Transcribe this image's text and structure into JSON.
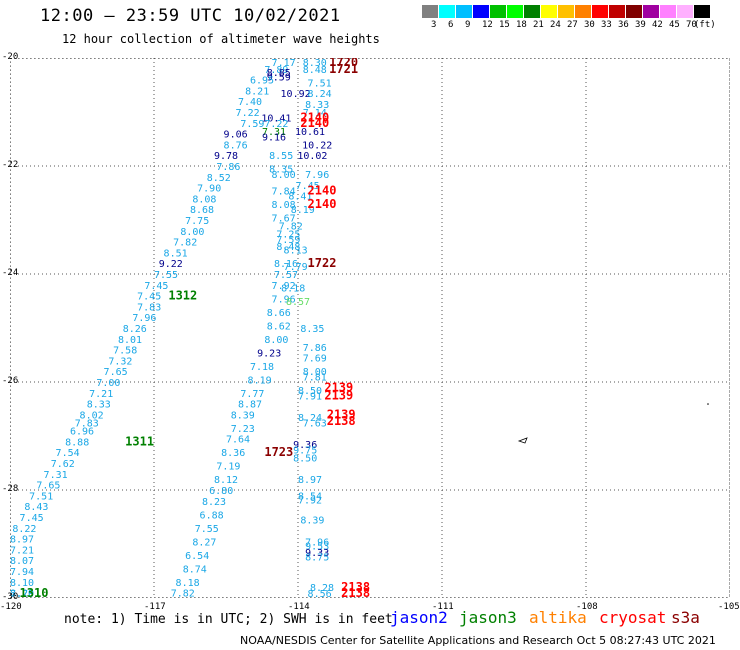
{
  "header": {
    "title": "12:00 — 23:59 UTC 10/02/2021",
    "subtitle": "12 hour collection of altimeter wave heights"
  },
  "legend": {
    "colors": [
      "#808080",
      "#00ffff",
      "#00bfff",
      "#0000ff",
      "#00c000",
      "#00ff00",
      "#008000",
      "#ffff00",
      "#ffc000",
      "#ff8000",
      "#ff0000",
      "#c00000",
      "#800000",
      "#a000a0",
      "#ff80ff",
      "#ffb0ff",
      "#000000"
    ],
    "labels": [
      "3",
      "6",
      "9",
      "12",
      "15",
      "18",
      "21",
      "24",
      "27",
      "30",
      "33",
      "36",
      "39",
      "42",
      "45",
      "70",
      "(ft)"
    ]
  },
  "colors": {
    "cyan": "#1aa7e6",
    "navy": "#00008b",
    "red": "#ff0000",
    "darkred": "#8b0000",
    "green": "#008000",
    "lightgreen": "#66dd66",
    "grid": "#555555"
  },
  "map": {
    "lon_ticks": [
      "-120",
      "-117",
      "-114",
      "-111",
      "-108",
      "-105"
    ],
    "lat_ticks": [
      "-20",
      "-22",
      "-24",
      "-26",
      "-28",
      "-30"
    ],
    "lon_range": [
      -120,
      -105
    ],
    "lat_range": [
      -30,
      -20
    ],
    "obs": [
      {
        "lon": -114.3,
        "lat": -20.05,
        "text": "7.17",
        "c": "cyan"
      },
      {
        "lon": -114.45,
        "lat": -20.2,
        "text": "7.89",
        "c": "cyan"
      },
      {
        "lon": -114.4,
        "lat": -20.26,
        "text": "8.85",
        "c": "navy"
      },
      {
        "lon": -114.4,
        "lat": -20.34,
        "text": "9.59",
        "c": "navy"
      },
      {
        "lon": -114.75,
        "lat": -20.4,
        "text": "6.95",
        "c": "cyan"
      },
      {
        "lon": -114.85,
        "lat": -20.6,
        "text": "8.21",
        "c": "cyan"
      },
      {
        "lon": -114.05,
        "lat": -20.65,
        "text": "10.92",
        "c": "navy"
      },
      {
        "lon": -115.0,
        "lat": -20.8,
        "text": "7.40",
        "c": "cyan"
      },
      {
        "lon": -115.05,
        "lat": -21.0,
        "text": "7.22",
        "c": "cyan"
      },
      {
        "lon": -114.45,
        "lat": -21.1,
        "text": "10.41",
        "c": "navy"
      },
      {
        "lon": -114.45,
        "lat": -21.2,
        "text": "7.22",
        "c": "cyan"
      },
      {
        "lon": -114.95,
        "lat": -21.2,
        "text": "7.59",
        "c": "cyan"
      },
      {
        "lon": -114.5,
        "lat": -21.35,
        "text": "7.31",
        "c": "green"
      },
      {
        "lon": -115.3,
        "lat": -21.4,
        "text": "9.06",
        "c": "navy"
      },
      {
        "lon": -114.5,
        "lat": -21.45,
        "text": "9.16",
        "c": "navy"
      },
      {
        "lon": -115.3,
        "lat": -21.6,
        "text": "8.76",
        "c": "cyan"
      },
      {
        "lon": -115.5,
        "lat": -21.8,
        "text": "9.78",
        "c": "navy"
      },
      {
        "lon": -114.35,
        "lat": -21.8,
        "text": "8.55",
        "c": "cyan"
      },
      {
        "lon": -115.45,
        "lat": -22.0,
        "text": "7.86",
        "c": "cyan"
      },
      {
        "lon": -114.35,
        "lat": -22.05,
        "text": "8.35",
        "c": "cyan"
      },
      {
        "lon": -114.3,
        "lat": -22.15,
        "text": "8.00",
        "c": "cyan"
      },
      {
        "lon": -115.65,
        "lat": -22.2,
        "text": "8.52",
        "c": "cyan"
      },
      {
        "lon": -115.85,
        "lat": -22.4,
        "text": "7.90",
        "c": "cyan"
      },
      {
        "lon": -114.3,
        "lat": -22.45,
        "text": "7.84",
        "c": "cyan"
      },
      {
        "lon": -115.95,
        "lat": -22.6,
        "text": "8.08",
        "c": "cyan"
      },
      {
        "lon": -114.3,
        "lat": -22.7,
        "text": "8.08",
        "c": "cyan"
      },
      {
        "lon": -116.0,
        "lat": -22.8,
        "text": "8.68",
        "c": "cyan"
      },
      {
        "lon": -114.3,
        "lat": -22.95,
        "text": "7.67",
        "c": "cyan"
      },
      {
        "lon": -116.1,
        "lat": -23.0,
        "text": "7.75",
        "c": "cyan"
      },
      {
        "lon": -114.15,
        "lat": -23.1,
        "text": "7.82",
        "c": "cyan"
      },
      {
        "lon": -116.2,
        "lat": -23.2,
        "text": "8.00",
        "c": "cyan"
      },
      {
        "lon": -114.2,
        "lat": -23.25,
        "text": "7.25",
        "c": "cyan"
      },
      {
        "lon": -114.2,
        "lat": -23.35,
        "text": "7.59",
        "c": "cyan"
      },
      {
        "lon": -116.35,
        "lat": -23.4,
        "text": "7.82",
        "c": "cyan"
      },
      {
        "lon": -114.2,
        "lat": -23.48,
        "text": "8.48",
        "c": "cyan"
      },
      {
        "lon": -116.55,
        "lat": -23.6,
        "text": "8.51",
        "c": "cyan"
      },
      {
        "lon": -114.25,
        "lat": -23.8,
        "text": "8.16",
        "c": "cyan"
      },
      {
        "lon": -116.65,
        "lat": -23.8,
        "text": "9.22",
        "c": "navy"
      },
      {
        "lon": -116.75,
        "lat": -24.0,
        "text": "7.55",
        "c": "cyan"
      },
      {
        "lon": -114.25,
        "lat": -24.0,
        "text": "7.57",
        "c": "cyan"
      },
      {
        "lon": -116.95,
        "lat": -24.2,
        "text": "7.45",
        "c": "cyan"
      },
      {
        "lon": -114.3,
        "lat": -24.2,
        "text": "7.92",
        "c": "cyan"
      },
      {
        "lon": -117.1,
        "lat": -24.4,
        "text": "7.45",
        "c": "cyan"
      },
      {
        "lon": -114.3,
        "lat": -24.45,
        "text": "7.96",
        "c": "cyan"
      },
      {
        "lon": -114.0,
        "lat": -24.5,
        "text": "8.57",
        "c": "lightgreen"
      },
      {
        "lon": -117.1,
        "lat": -24.6,
        "text": "7.83",
        "c": "cyan"
      },
      {
        "lon": -114.4,
        "lat": -24.7,
        "text": "8.66",
        "c": "cyan"
      },
      {
        "lon": -117.2,
        "lat": -24.8,
        "text": "7.96",
        "c": "cyan"
      },
      {
        "lon": -114.4,
        "lat": -24.95,
        "text": "8.62",
        "c": "cyan"
      },
      {
        "lon": -117.4,
        "lat": -25.0,
        "text": "8.26",
        "c": "cyan"
      },
      {
        "lon": -113.7,
        "lat": -25.0,
        "text": "8.35",
        "c": "cyan"
      },
      {
        "lon": -114.45,
        "lat": -25.2,
        "text": "8.00",
        "c": "cyan"
      },
      {
        "lon": -117.5,
        "lat": -25.2,
        "text": "8.01",
        "c": "cyan"
      },
      {
        "lon": -113.65,
        "lat": -25.35,
        "text": "7.86",
        "c": "cyan"
      },
      {
        "lon": -117.6,
        "lat": -25.4,
        "text": "7.58",
        "c": "cyan"
      },
      {
        "lon": -114.6,
        "lat": -25.45,
        "text": "9.23",
        "c": "navy"
      },
      {
        "lon": -117.7,
        "lat": -25.6,
        "text": "7.32",
        "c": "cyan"
      },
      {
        "lon": -113.65,
        "lat": -25.55,
        "text": "7.69",
        "c": "cyan"
      },
      {
        "lon": -114.75,
        "lat": -25.7,
        "text": "7.18",
        "c": "cyan"
      },
      {
        "lon": -117.8,
        "lat": -25.8,
        "text": "7.65",
        "c": "cyan"
      },
      {
        "lon": -113.65,
        "lat": -25.8,
        "text": "8.00",
        "c": "cyan"
      },
      {
        "lon": -114.8,
        "lat": -25.95,
        "text": "8.19",
        "c": "cyan"
      },
      {
        "lon": -113.65,
        "lat": -25.9,
        "text": "7.81",
        "c": "cyan"
      },
      {
        "lon": -117.95,
        "lat": -26.0,
        "text": "7.00",
        "c": "cyan"
      },
      {
        "lon": -114.95,
        "lat": -26.2,
        "text": "7.77",
        "c": "cyan"
      },
      {
        "lon": -118.1,
        "lat": -26.2,
        "text": "7.21",
        "c": "cyan"
      },
      {
        "lon": -113.75,
        "lat": -26.15,
        "text": "8.50",
        "c": "cyan"
      },
      {
        "lon": -113.75,
        "lat": -26.25,
        "text": "7.91",
        "c": "cyan"
      },
      {
        "lon": -118.15,
        "lat": -26.4,
        "text": "8.33",
        "c": "cyan"
      },
      {
        "lon": -115.0,
        "lat": -26.4,
        "text": "8.87",
        "c": "cyan"
      },
      {
        "lon": -118.3,
        "lat": -26.6,
        "text": "8.02",
        "c": "cyan"
      },
      {
        "lon": -115.15,
        "lat": -26.6,
        "text": "8.39",
        "c": "cyan"
      },
      {
        "lon": -113.75,
        "lat": -26.65,
        "text": "8.24",
        "c": "cyan"
      },
      {
        "lon": -113.65,
        "lat": -26.75,
        "text": "7.63",
        "c": "cyan"
      },
      {
        "lon": -118.4,
        "lat": -26.75,
        "text": "7.83",
        "c": "cyan"
      },
      {
        "lon": -115.15,
        "lat": -26.85,
        "text": "7.23",
        "c": "cyan"
      },
      {
        "lon": -118.5,
        "lat": -26.9,
        "text": "6.96",
        "c": "cyan"
      },
      {
        "lon": -118.6,
        "lat": -27.1,
        "text": "8.88",
        "c": "cyan"
      },
      {
        "lon": -115.25,
        "lat": -27.05,
        "text": "7.64",
        "c": "cyan"
      },
      {
        "lon": -113.85,
        "lat": -27.15,
        "text": "9.36",
        "c": "navy"
      },
      {
        "lon": -113.85,
        "lat": -27.25,
        "text": "9.75",
        "c": "cyan"
      },
      {
        "lon": -118.8,
        "lat": -27.3,
        "text": "7.54",
        "c": "cyan"
      },
      {
        "lon": -115.35,
        "lat": -27.3,
        "text": "8.36",
        "c": "cyan"
      },
      {
        "lon": -113.85,
        "lat": -27.4,
        "text": "8.50",
        "c": "cyan"
      },
      {
        "lon": -118.9,
        "lat": -27.5,
        "text": "7.62",
        "c": "cyan"
      },
      {
        "lon": -115.45,
        "lat": -27.55,
        "text": "7.19",
        "c": "cyan"
      },
      {
        "lon": -119.05,
        "lat": -27.7,
        "text": "7.31",
        "c": "cyan"
      },
      {
        "lon": -115.5,
        "lat": -27.8,
        "text": "8.12",
        "c": "cyan"
      },
      {
        "lon": -113.75,
        "lat": -27.8,
        "text": "8.97",
        "c": "cyan"
      },
      {
        "lon": -119.2,
        "lat": -27.9,
        "text": "7.65",
        "c": "cyan"
      },
      {
        "lon": -115.6,
        "lat": -28.0,
        "text": "6.80",
        "c": "cyan"
      },
      {
        "lon": -119.35,
        "lat": -28.1,
        "text": "7.51",
        "c": "cyan"
      },
      {
        "lon": -113.75,
        "lat": -28.1,
        "text": "8.54",
        "c": "cyan"
      },
      {
        "lon": -113.75,
        "lat": -28.18,
        "text": "7.92",
        "c": "cyan"
      },
      {
        "lon": -115.75,
        "lat": -28.2,
        "text": "8.23",
        "c": "cyan"
      },
      {
        "lon": -119.45,
        "lat": -28.3,
        "text": "8.43",
        "c": "cyan"
      },
      {
        "lon": -115.8,
        "lat": -28.45,
        "text": "6.88",
        "c": "cyan"
      },
      {
        "lon": -119.55,
        "lat": -28.5,
        "text": "7.45",
        "c": "cyan"
      },
      {
        "lon": -113.7,
        "lat": -28.55,
        "text": "8.39",
        "c": "cyan"
      },
      {
        "lon": -119.7,
        "lat": -28.7,
        "text": "8.22",
        "c": "cyan"
      },
      {
        "lon": -115.9,
        "lat": -28.7,
        "text": "7.55",
        "c": "cyan"
      },
      {
        "lon": -119.75,
        "lat": -28.9,
        "text": "8.97",
        "c": "cyan"
      },
      {
        "lon": -115.95,
        "lat": -28.95,
        "text": "8.27",
        "c": "cyan"
      },
      {
        "lon": -113.6,
        "lat": -28.95,
        "text": "7.96",
        "c": "cyan"
      },
      {
        "lon": -113.6,
        "lat": -29.03,
        "text": "9.53",
        "c": "cyan"
      },
      {
        "lon": -119.85,
        "lat": -29.1,
        "text": "7.21",
        "c": "cyan"
      },
      {
        "lon": -113.6,
        "lat": -29.15,
        "text": "9.33",
        "c": "navy"
      },
      {
        "lon": -116.1,
        "lat": -29.2,
        "text": "6.54",
        "c": "cyan"
      },
      {
        "lon": -113.6,
        "lat": -29.23,
        "text": "8.75",
        "c": "cyan"
      },
      {
        "lon": -119.95,
        "lat": -29.3,
        "text": "8.07",
        "c": "cyan"
      },
      {
        "lon": -116.15,
        "lat": -29.45,
        "text": "8.74",
        "c": "cyan"
      },
      {
        "lon": -120.05,
        "lat": -29.5,
        "text": "7.94",
        "c": "cyan"
      },
      {
        "lon": -116.3,
        "lat": -29.7,
        "text": "8.18",
        "c": "cyan"
      },
      {
        "lon": -120.2,
        "lat": -29.7,
        "text": "8.10",
        "c": "cyan"
      },
      {
        "lon": -113.5,
        "lat": -29.8,
        "text": "8.28",
        "c": "cyan"
      },
      {
        "lon": -120.25,
        "lat": -29.9,
        "text": "8.29",
        "c": "cyan"
      },
      {
        "lon": -116.4,
        "lat": -29.9,
        "text": "7.82",
        "c": "cyan"
      },
      {
        "lon": -113.55,
        "lat": -30.0,
        "text": "8.56",
        "c": "cyan"
      },
      {
        "lon": -120.4,
        "lat": -30.0,
        "text": "7.70",
        "c": "cyan"
      },
      {
        "lon": -113.65,
        "lat": -20.0,
        "text": "8.30",
        "c": "cyan"
      },
      {
        "lon": -113.65,
        "lat": -20.2,
        "text": "8.48",
        "c": "cyan"
      },
      {
        "lon": -113.55,
        "lat": -20.45,
        "text": "7.51",
        "c": "cyan"
      },
      {
        "lon": -113.55,
        "lat": -20.65,
        "text": "8.24",
        "c": "cyan"
      },
      {
        "lon": -113.6,
        "lat": -20.85,
        "text": "8.33",
        "c": "cyan"
      },
      {
        "lon": -113.65,
        "lat": -21.0,
        "text": "7.14",
        "c": "cyan"
      },
      {
        "lon": -113.75,
        "lat": -21.35,
        "text": "10.61",
        "c": "navy"
      },
      {
        "lon": -113.6,
        "lat": -21.6,
        "text": "10.22",
        "c": "navy"
      },
      {
        "lon": -113.7,
        "lat": -21.8,
        "text": "10.02",
        "c": "navy"
      },
      {
        "lon": -113.6,
        "lat": -22.15,
        "text": "7.96",
        "c": "cyan"
      },
      {
        "lon": -113.8,
        "lat": -22.35,
        "text": "7.45",
        "c": "cyan"
      },
      {
        "lon": -113.95,
        "lat": -22.55,
        "text": "8.41",
        "c": "cyan"
      },
      {
        "lon": -113.9,
        "lat": -22.8,
        "text": "8.19",
        "c": "cyan"
      },
      {
        "lon": -114.05,
        "lat": -23.55,
        "text": "8.13",
        "c": "cyan"
      },
      {
        "lon": -114.05,
        "lat": -23.85,
        "text": "7.79",
        "c": "cyan"
      },
      {
        "lon": -114.1,
        "lat": -24.25,
        "text": "8.18",
        "c": "cyan"
      }
    ],
    "tracks": [
      {
        "lon": -113.05,
        "lat": -20.0,
        "text": "1720",
        "c": "darkred"
      },
      {
        "lon": -113.05,
        "lat": -20.2,
        "text": "1721",
        "c": "darkred"
      },
      {
        "lon": -113.65,
        "lat": -21.1,
        "text": "2140",
        "c": "red"
      },
      {
        "lon": -113.65,
        "lat": -21.2,
        "text": "2140",
        "c": "red"
      },
      {
        "lon": -113.5,
        "lat": -22.45,
        "text": "2140",
        "c": "red"
      },
      {
        "lon": -113.5,
        "lat": -22.7,
        "text": "2140",
        "c": "red"
      },
      {
        "lon": -113.5,
        "lat": -23.8,
        "text": "1722",
        "c": "darkred"
      },
      {
        "lon": -113.15,
        "lat": -26.1,
        "text": "2139",
        "c": "red"
      },
      {
        "lon": -113.15,
        "lat": -26.25,
        "text": "2139",
        "c": "red"
      },
      {
        "lon": -113.1,
        "lat": -26.6,
        "text": "2139",
        "c": "red"
      },
      {
        "lon": -113.1,
        "lat": -26.72,
        "text": "2138",
        "c": "red"
      },
      {
        "lon": -114.4,
        "lat": -27.3,
        "text": "1723",
        "c": "darkred"
      },
      {
        "lon": -112.8,
        "lat": -29.8,
        "text": "2138",
        "c": "red"
      },
      {
        "lon": -112.8,
        "lat": -30.0,
        "text": "2138",
        "c": "red"
      },
      {
        "lon": -116.4,
        "lat": -24.4,
        "text": "1312",
        "c": "green"
      },
      {
        "lon": -117.3,
        "lat": -27.1,
        "text": "1311",
        "c": "green"
      },
      {
        "lon": -119.5,
        "lat": -30.0,
        "text": "1310",
        "c": "green"
      }
    ]
  },
  "footer": {
    "note": "note: 1) Time is in UTC; 2) SWH is in feet",
    "satellites": [
      {
        "name": "jason2",
        "color": "#0000ff"
      },
      {
        "name": "jason3",
        "color": "#008000"
      },
      {
        "name": "altika",
        "color": "#ff8000"
      },
      {
        "name": "cryosat",
        "color": "#ff0000"
      },
      {
        "name": "s3a",
        "color": "#8b0000"
      }
    ],
    "credit": "NOAA/NESDIS Center for Satellite Applications and Research   Oct  5 08:27:43 UTC 2021"
  }
}
